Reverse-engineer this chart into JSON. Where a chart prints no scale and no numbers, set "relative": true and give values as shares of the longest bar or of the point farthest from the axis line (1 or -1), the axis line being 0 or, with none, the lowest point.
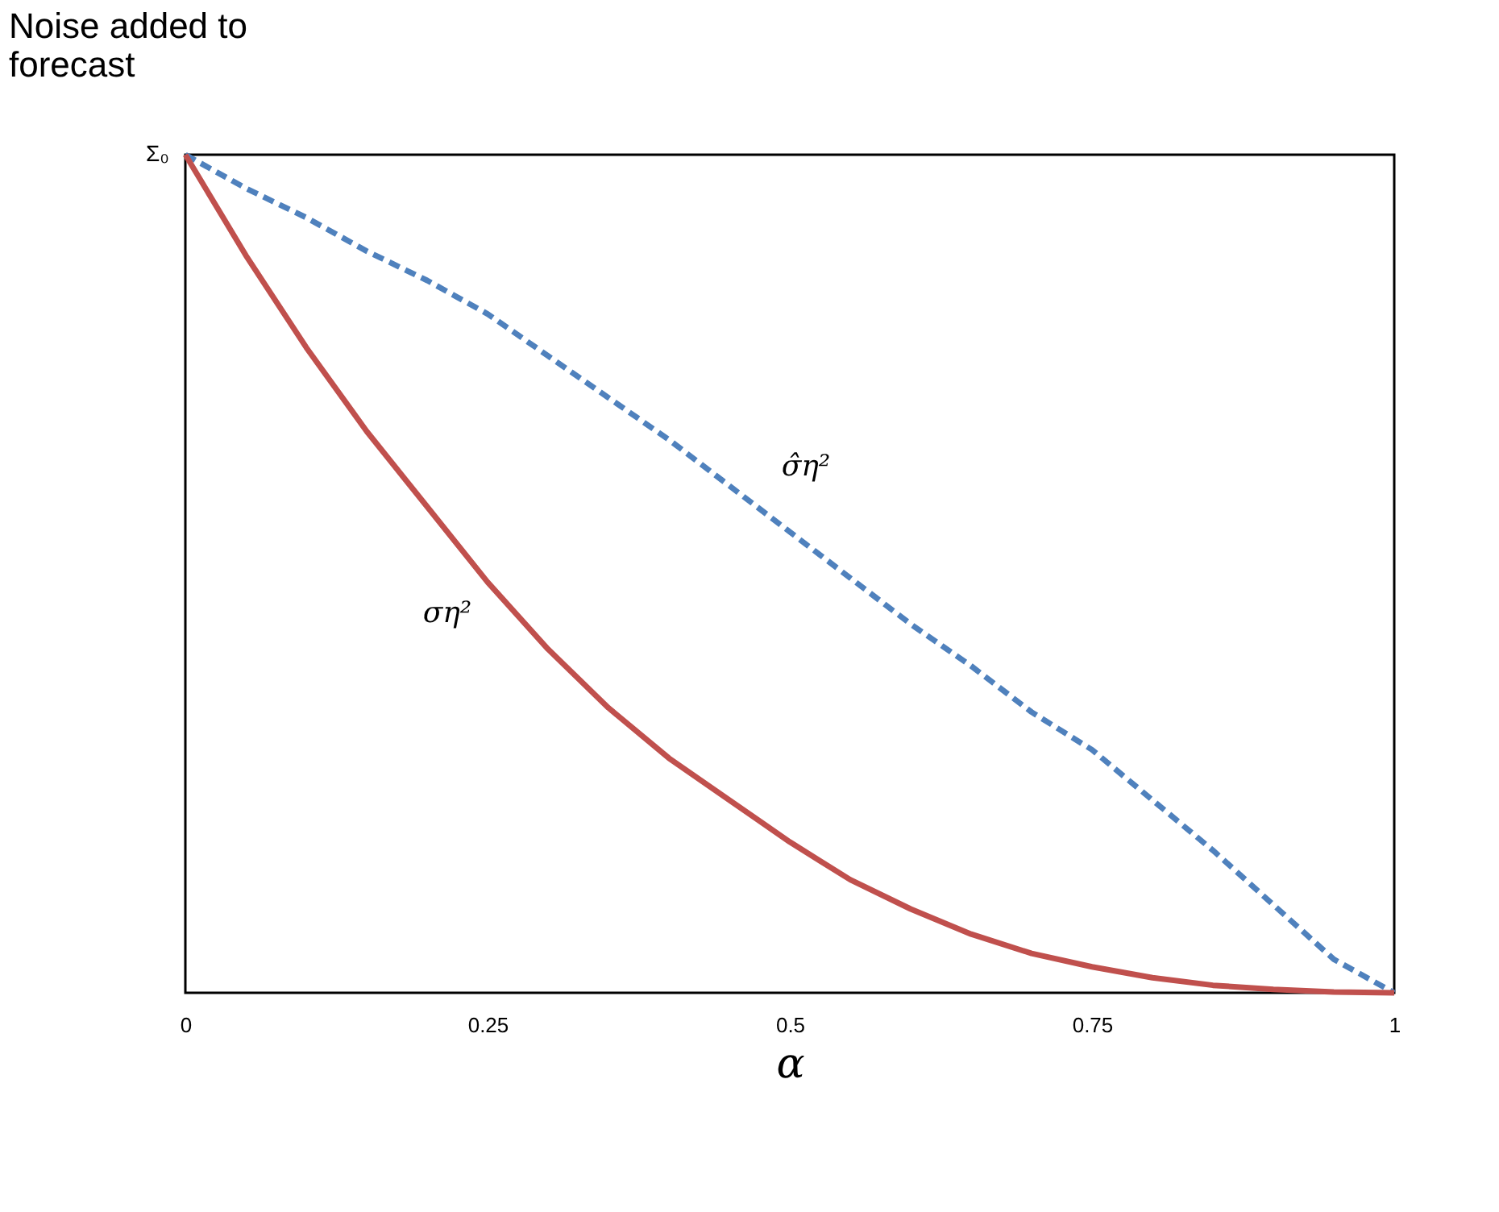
{
  "chart_data": {
    "type": "line",
    "relative": true,
    "ylabel": "Noise added to forecast",
    "xlabel": "α",
    "x": [
      0,
      0.05,
      0.1,
      0.15,
      0.2,
      0.25,
      0.3,
      0.35,
      0.4,
      0.45,
      0.5,
      0.55,
      0.6,
      0.65,
      0.7,
      0.75,
      0.8,
      0.85,
      0.9,
      0.95,
      1
    ],
    "xlim": [
      0,
      1
    ],
    "xticks": [
      0,
      0.25,
      0.5,
      0.75,
      1
    ],
    "series": [
      {
        "name": "σ̂η²",
        "color": "#4f81bd",
        "line_style": "dashed",
        "values": [
          1,
          0.96,
          0.925,
          0.885,
          0.85,
          0.81,
          0.76,
          0.71,
          0.66,
          0.605,
          0.55,
          0.495,
          0.44,
          0.39,
          0.335,
          0.29,
          0.23,
          0.17,
          0.105,
          0.04,
          0
        ]
      },
      {
        "name": "ση²",
        "color": "#c0504d",
        "line_style": "solid",
        "values": [
          1,
          0.88,
          0.77,
          0.67,
          0.58,
          0.49,
          0.41,
          0.34,
          0.28,
          0.23,
          0.18,
          0.135,
          0.1,
          0.07,
          0.047,
          0.031,
          0.018,
          0.009,
          0.004,
          0.001,
          0
        ]
      }
    ],
    "annotations": [
      "Σ₀"
    ],
    "grid": false,
    "legend": false,
    "marker": "none"
  }
}
